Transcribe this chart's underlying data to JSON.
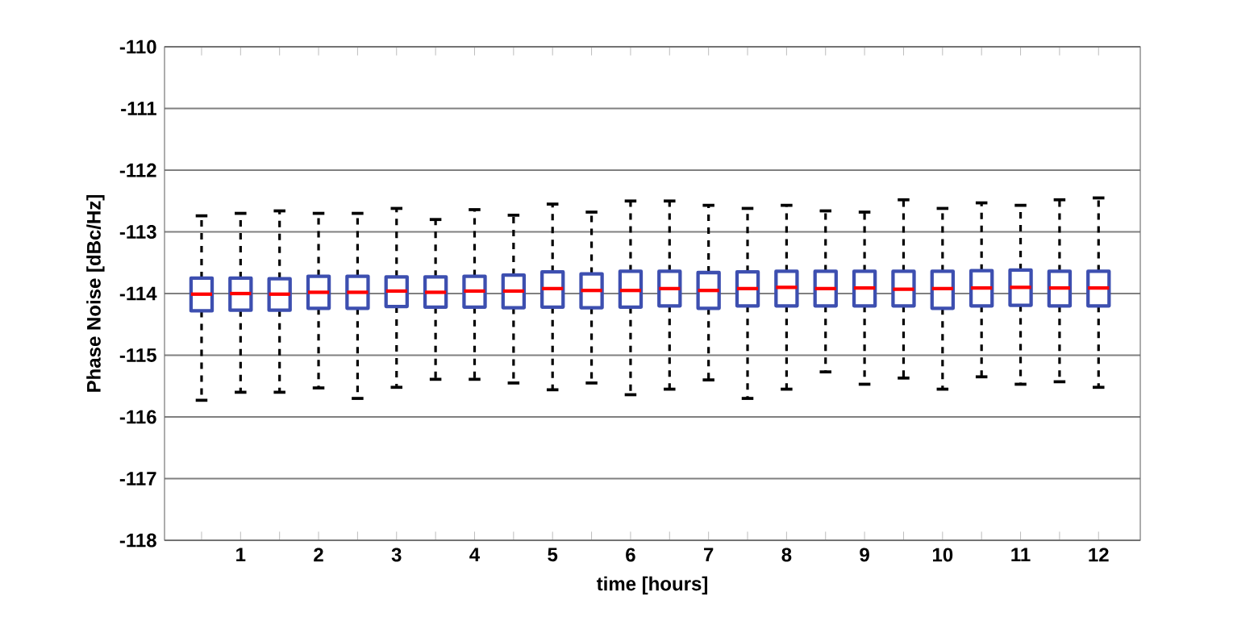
{
  "chart_data": {
    "type": "box",
    "xlabel": "time [hours]",
    "ylabel": "Phase Noise [dBc/Hz]",
    "categories": [
      null,
      "1",
      null,
      "2",
      null,
      "3",
      null,
      "4",
      null,
      "5",
      null,
      "6",
      null,
      "7",
      null,
      "8",
      null,
      "9",
      null,
      "10",
      null,
      "11",
      null,
      "12"
    ],
    "ylim": [
      -118,
      -110
    ],
    "yticks": [
      -118,
      -117,
      -116,
      -115,
      -114,
      -113,
      -112,
      -111,
      -110
    ],
    "grid": "y",
    "line_style": "dashed",
    "series": [
      {
        "color": "#3d4fb0",
        "boxes": [
          {
            "low": -115.73,
            "q1": -114.28,
            "median": -114.01,
            "q3": -113.75,
            "high": -112.74
          },
          {
            "low": -115.6,
            "q1": -114.27,
            "median": -114.0,
            "q3": -113.75,
            "high": -112.7
          },
          {
            "low": -115.6,
            "q1": -114.27,
            "median": -114.01,
            "q3": -113.76,
            "high": -112.66
          },
          {
            "low": -115.53,
            "q1": -114.24,
            "median": -113.98,
            "q3": -113.72,
            "high": -112.7
          },
          {
            "low": -115.7,
            "q1": -114.24,
            "median": -113.98,
            "q3": -113.72,
            "high": -112.7
          },
          {
            "low": -115.52,
            "q1": -114.21,
            "median": -113.96,
            "q3": -113.73,
            "high": -112.62
          },
          {
            "low": -115.39,
            "q1": -114.22,
            "median": -113.98,
            "q3": -113.73,
            "high": -112.8
          },
          {
            "low": -115.39,
            "q1": -114.22,
            "median": -113.96,
            "q3": -113.72,
            "high": -112.64
          },
          {
            "low": -115.45,
            "q1": -114.23,
            "median": -113.96,
            "q3": -113.7,
            "high": -112.73
          },
          {
            "low": -115.56,
            "q1": -114.22,
            "median": -113.92,
            "q3": -113.65,
            "high": -112.55
          },
          {
            "low": -115.45,
            "q1": -114.23,
            "median": -113.95,
            "q3": -113.68,
            "high": -112.68
          },
          {
            "low": -115.64,
            "q1": -114.22,
            "median": -113.95,
            "q3": -113.64,
            "high": -112.5
          },
          {
            "low": -115.55,
            "q1": -114.2,
            "median": -113.92,
            "q3": -113.64,
            "high": -112.5
          },
          {
            "low": -115.4,
            "q1": -114.24,
            "median": -113.95,
            "q3": -113.66,
            "high": -112.57
          },
          {
            "low": -115.7,
            "q1": -114.2,
            "median": -113.92,
            "q3": -113.65,
            "high": -112.62
          },
          {
            "low": -115.55,
            "q1": -114.2,
            "median": -113.9,
            "q3": -113.64,
            "high": -112.57
          },
          {
            "low": -115.27,
            "q1": -114.2,
            "median": -113.92,
            "q3": -113.64,
            "high": -112.66
          },
          {
            "low": -115.47,
            "q1": -114.2,
            "median": -113.91,
            "q3": -113.64,
            "high": -112.68
          },
          {
            "low": -115.37,
            "q1": -114.2,
            "median": -113.93,
            "q3": -113.64,
            "high": -112.48
          },
          {
            "low": -115.55,
            "q1": -114.24,
            "median": -113.92,
            "q3": -113.64,
            "high": -112.62
          },
          {
            "low": -115.35,
            "q1": -114.2,
            "median": -113.91,
            "q3": -113.63,
            "high": -112.53
          },
          {
            "low": -115.47,
            "q1": -114.19,
            "median": -113.9,
            "q3": -113.62,
            "high": -112.57
          },
          {
            "low": -115.43,
            "q1": -114.2,
            "median": -113.91,
            "q3": -113.64,
            "high": -112.48
          },
          {
            "low": -115.52,
            "q1": -114.2,
            "median": -113.91,
            "q3": -113.64,
            "high": -112.45
          }
        ]
      }
    ]
  }
}
